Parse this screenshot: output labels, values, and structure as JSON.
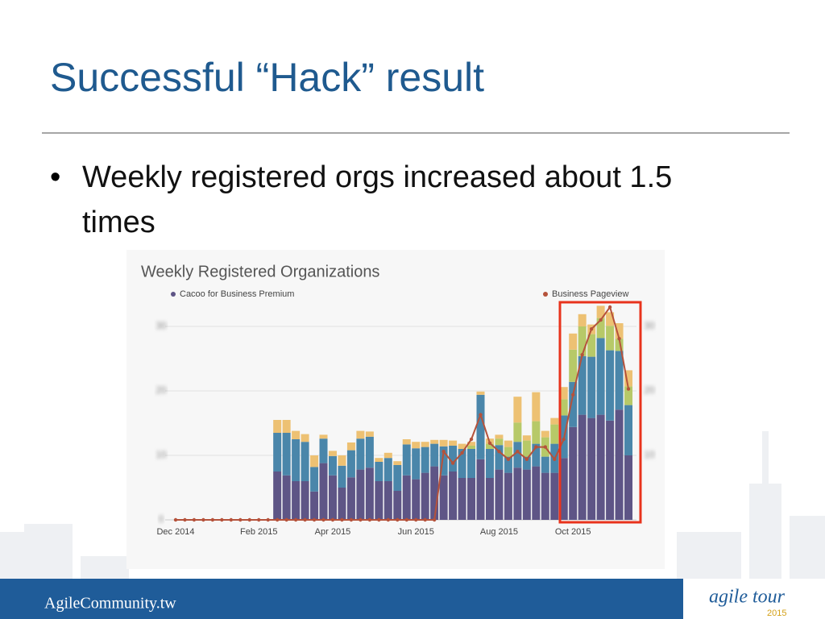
{
  "slide": {
    "title": "Successful “Hack” result",
    "bullet": "Weekly registered orgs increased about 1.5 times",
    "footer": "AgileCommunity.tw",
    "logo": "agile tour",
    "logo_year": "2015"
  },
  "chart_data": {
    "type": "bar",
    "title": "Weekly Registered Organizations",
    "categories": [
      "Dec 2014",
      null,
      null,
      null,
      null,
      null,
      null,
      null,
      null,
      "Feb 2015",
      null,
      null,
      null,
      null,
      null,
      null,
      null,
      "Apr 2015",
      null,
      null,
      null,
      null,
      null,
      null,
      null,
      null,
      "Jun 2015",
      null,
      null,
      null,
      null,
      null,
      null,
      null,
      null,
      "Aug 2015",
      null,
      null,
      null,
      null,
      null,
      null,
      null,
      "Oct 2015",
      null,
      null,
      null,
      null,
      null,
      null
    ],
    "ylim": [
      0,
      34
    ],
    "yticks": [
      0,
      10,
      20,
      30
    ],
    "y2lim": [
      0,
      34
    ],
    "y2ticks": [
      10,
      20,
      30
    ],
    "grid": true,
    "series": [
      {
        "name": "Cacoo for Business Premium",
        "color": "#5e5586",
        "values": [
          null,
          null,
          null,
          null,
          null,
          null,
          null,
          null,
          null,
          null,
          null,
          7.5,
          6.9,
          6,
          6,
          4.4,
          8.8,
          6.9,
          5,
          6.6,
          7.8,
          8.1,
          6,
          6,
          4.5,
          6.9,
          6.3,
          7.3,
          8.3,
          6.9,
          7.5,
          6.5,
          6.5,
          9.4,
          6.5,
          7.8,
          7.3,
          8.1,
          7.8,
          8.3,
          7.3,
          7.3,
          9.6,
          14.4,
          16.3,
          15.8,
          16.3,
          15.4,
          17.1,
          10
        ]
      },
      {
        "color": "#4a86aa",
        "values": [
          null,
          null,
          null,
          null,
          null,
          null,
          null,
          null,
          null,
          null,
          null,
          6,
          6.6,
          6.5,
          6.1,
          3.8,
          3.8,
          3,
          3.4,
          4.2,
          4.8,
          4.8,
          3,
          3.6,
          4,
          4.8,
          4.8,
          4,
          3.5,
          4.5,
          4,
          4.5,
          4.5,
          10,
          4.5,
          3.8,
          2.5,
          4,
          2,
          3.5,
          2.5,
          4.5,
          6.6,
          7,
          9.1,
          9.5,
          11.9,
          10.9,
          9.1,
          7.8
        ]
      },
      {
        "color": "#b7c968",
        "values": [
          null,
          null,
          null,
          null,
          null,
          null,
          null,
          null,
          null,
          null,
          null,
          0,
          0,
          0,
          0,
          0,
          0,
          0,
          0,
          0,
          0,
          0,
          0,
          0,
          0,
          0,
          0,
          0,
          0,
          0,
          0,
          0,
          0.5,
          0,
          0.8,
          1,
          1.5,
          3,
          2.5,
          3.5,
          3,
          3,
          2.5,
          5,
          4.6,
          3.5,
          3.1,
          3.8,
          1.9,
          2.9
        ]
      },
      {
        "color": "#edc173",
        "values": [
          null,
          null,
          null,
          null,
          null,
          null,
          null,
          null,
          null,
          null,
          null,
          2,
          2,
          1.3,
          1.2,
          1.8,
          0.6,
          0.8,
          1.6,
          1.2,
          1.2,
          0.8,
          0.6,
          0.8,
          0.6,
          0.8,
          1,
          0.8,
          0.6,
          1,
          0.8,
          0.8,
          0.6,
          0.5,
          0.8,
          0.6,
          1,
          4,
          0.8,
          4.5,
          1,
          1,
          1.9,
          2.5,
          1.9,
          1.5,
          1.9,
          2.1,
          2.4,
          2.5
        ]
      },
      {
        "name": "Business Pageview",
        "type": "line",
        "axis": "y2",
        "color": "#b5523b",
        "values": [
          0,
          0,
          0,
          0,
          0,
          0,
          0,
          0,
          0,
          0,
          0,
          0,
          0,
          0,
          0,
          0,
          0,
          0,
          0,
          0,
          0,
          0,
          0,
          0,
          0,
          0,
          0,
          0,
          0,
          10.6,
          8.8,
          10.4,
          12.5,
          16.3,
          11.9,
          10.6,
          9.4,
          10.6,
          9.4,
          11.3,
          11.3,
          9.4,
          12.5,
          19.4,
          25.6,
          29.6,
          31,
          33,
          28.1,
          20.3
        ]
      }
    ]
  }
}
